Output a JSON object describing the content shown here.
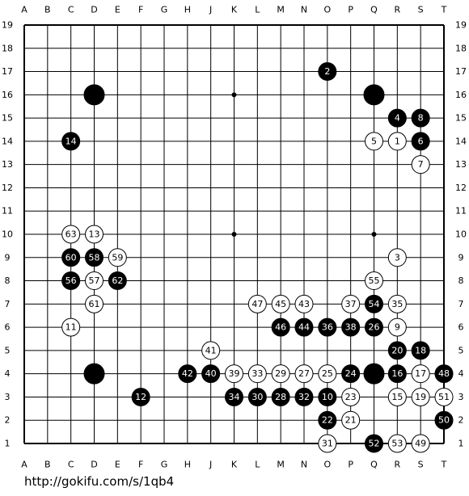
{
  "columns": [
    "A",
    "B",
    "C",
    "D",
    "E",
    "F",
    "G",
    "H",
    "J",
    "K",
    "L",
    "M",
    "N",
    "O",
    "P",
    "Q",
    "R",
    "S",
    "T"
  ],
  "rows": [
    19,
    18,
    17,
    16,
    15,
    14,
    13,
    12,
    11,
    10,
    9,
    8,
    7,
    6,
    5,
    4,
    3,
    2,
    1
  ],
  "stones": [
    {
      "col": "D",
      "row": 16,
      "color": "black"
    },
    {
      "col": "Q",
      "row": 16,
      "color": "black"
    },
    {
      "col": "D",
      "row": 4,
      "color": "black"
    },
    {
      "col": "Q",
      "row": 4,
      "color": "black"
    },
    {
      "col": "R",
      "row": 14,
      "color": "white",
      "label": 1
    },
    {
      "col": "O",
      "row": 17,
      "color": "black",
      "label": 2
    },
    {
      "col": "R",
      "row": 9,
      "color": "white",
      "label": 3
    },
    {
      "col": "R",
      "row": 15,
      "color": "black",
      "label": 4
    },
    {
      "col": "Q",
      "row": 14,
      "color": "white",
      "label": 5
    },
    {
      "col": "S",
      "row": 14,
      "color": "black",
      "label": 6
    },
    {
      "col": "S",
      "row": 13,
      "color": "white",
      "label": 7
    },
    {
      "col": "S",
      "row": 15,
      "color": "black",
      "label": 8
    },
    {
      "col": "R",
      "row": 6,
      "color": "white",
      "label": 9
    },
    {
      "col": "O",
      "row": 3,
      "color": "black",
      "label": 10
    },
    {
      "col": "C",
      "row": 6,
      "color": "white",
      "label": 11
    },
    {
      "col": "F",
      "row": 3,
      "color": "black",
      "label": 12
    },
    {
      "col": "D",
      "row": 10,
      "color": "white",
      "label": 13
    },
    {
      "col": "C",
      "row": 14,
      "color": "black",
      "label": 14
    },
    {
      "col": "R",
      "row": 3,
      "color": "white",
      "label": 15
    },
    {
      "col": "R",
      "row": 4,
      "color": "black",
      "label": 16
    },
    {
      "col": "S",
      "row": 4,
      "color": "white",
      "label": 17
    },
    {
      "col": "S",
      "row": 5,
      "color": "black",
      "label": 18
    },
    {
      "col": "S",
      "row": 3,
      "color": "white",
      "label": 19
    },
    {
      "col": "R",
      "row": 5,
      "color": "black",
      "label": 20
    },
    {
      "col": "P",
      "row": 2,
      "color": "white",
      "label": 21
    },
    {
      "col": "O",
      "row": 2,
      "color": "black",
      "label": 22
    },
    {
      "col": "P",
      "row": 3,
      "color": "white",
      "label": 23
    },
    {
      "col": "P",
      "row": 4,
      "color": "black",
      "label": 24
    },
    {
      "col": "O",
      "row": 4,
      "color": "white",
      "label": 25
    },
    {
      "col": "Q",
      "row": 6,
      "color": "black",
      "label": 26
    },
    {
      "col": "N",
      "row": 4,
      "color": "white",
      "label": 27
    },
    {
      "col": "M",
      "row": 3,
      "color": "black",
      "label": 28
    },
    {
      "col": "M",
      "row": 4,
      "color": "white",
      "label": 29
    },
    {
      "col": "L",
      "row": 3,
      "color": "black",
      "label": 30
    },
    {
      "col": "O",
      "row": 1,
      "color": "white",
      "label": 31
    },
    {
      "col": "N",
      "row": 3,
      "color": "black",
      "label": 32
    },
    {
      "col": "L",
      "row": 4,
      "color": "white",
      "label": 33
    },
    {
      "col": "K",
      "row": 3,
      "color": "black",
      "label": 34
    },
    {
      "col": "R",
      "row": 7,
      "color": "white",
      "label": 35
    },
    {
      "col": "O",
      "row": 6,
      "color": "black",
      "label": 36
    },
    {
      "col": "P",
      "row": 7,
      "color": "white",
      "label": 37
    },
    {
      "col": "P",
      "row": 6,
      "color": "black",
      "label": 38
    },
    {
      "col": "K",
      "row": 4,
      "color": "white",
      "label": 39
    },
    {
      "col": "J",
      "row": 4,
      "color": "black",
      "label": 40
    },
    {
      "col": "J",
      "row": 5,
      "color": "white",
      "label": 41
    },
    {
      "col": "H",
      "row": 4,
      "color": "black",
      "label": 42
    },
    {
      "col": "N",
      "row": 7,
      "color": "white",
      "label": 43
    },
    {
      "col": "N",
      "row": 6,
      "color": "black",
      "label": 44
    },
    {
      "col": "M",
      "row": 7,
      "color": "white",
      "label": 45
    },
    {
      "col": "M",
      "row": 6,
      "color": "black",
      "label": 46
    },
    {
      "col": "L",
      "row": 7,
      "color": "white",
      "label": 47
    },
    {
      "col": "T",
      "row": 4,
      "color": "black",
      "label": 48
    },
    {
      "col": "S",
      "row": 1,
      "color": "white",
      "label": 49
    },
    {
      "col": "T",
      "row": 2,
      "color": "black",
      "label": 50
    },
    {
      "col": "T",
      "row": 3,
      "color": "white",
      "label": 51
    },
    {
      "col": "Q",
      "row": 1,
      "color": "black",
      "label": 52
    },
    {
      "col": "R",
      "row": 1,
      "color": "white",
      "label": 53
    },
    {
      "col": "Q",
      "row": 7,
      "color": "black",
      "label": 54
    },
    {
      "col": "Q",
      "row": 8,
      "color": "white",
      "label": 55
    },
    {
      "col": "C",
      "row": 8,
      "color": "black",
      "label": 56
    },
    {
      "col": "D",
      "row": 8,
      "color": "white",
      "label": 57
    },
    {
      "col": "D",
      "row": 9,
      "color": "black",
      "label": 58
    },
    {
      "col": "E",
      "row": 9,
      "color": "white",
      "label": 59
    },
    {
      "col": "C",
      "row": 9,
      "color": "black",
      "label": 60
    },
    {
      "col": "D",
      "row": 7,
      "color": "white",
      "label": 61
    },
    {
      "col": "E",
      "row": 8,
      "color": "black",
      "label": 62
    },
    {
      "col": "C",
      "row": 10,
      "color": "white",
      "label": 63
    }
  ],
  "url": "http://gokifu.com/s/1qb4"
}
